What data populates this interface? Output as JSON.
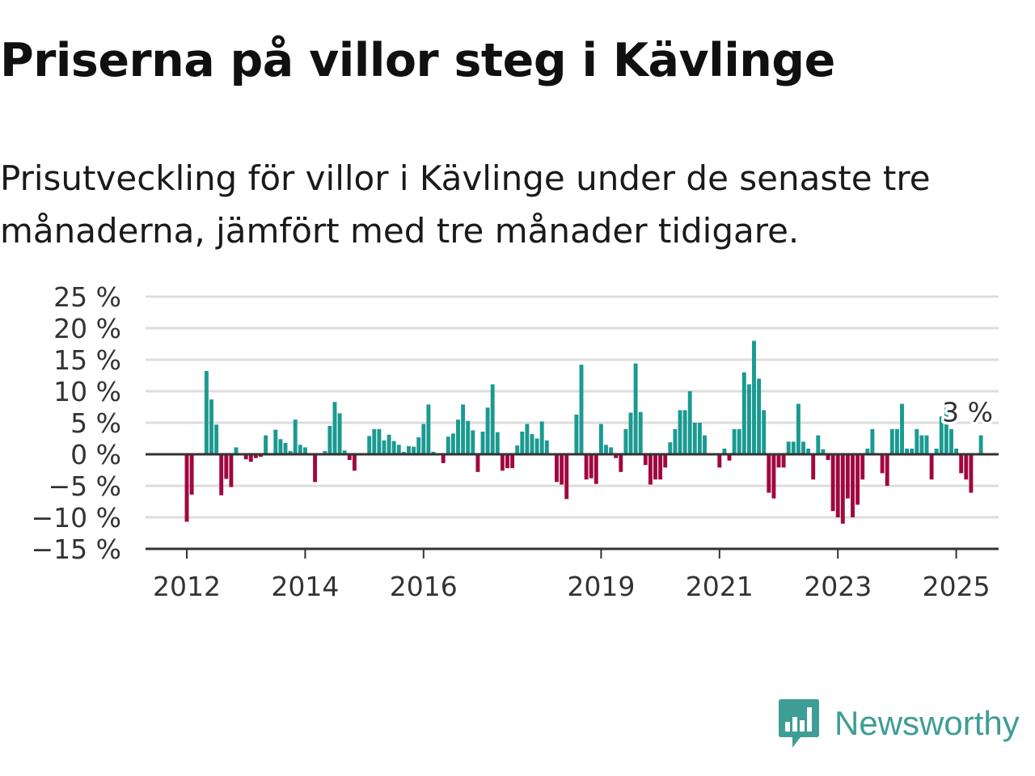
{
  "chart_data": {
    "type": "bar",
    "title": "Priserna på villor steg i Kävlinge",
    "subtitle": "Prisutveckling för villor i Kävlinge under de senaste tre månaderna, jämfört med tre månader tidigare.",
    "unit": "%",
    "x_start": "2012-01",
    "x_ticks": [
      "2012",
      "2014",
      "2016",
      "2019",
      "2021",
      "2023",
      "2025"
    ],
    "y_ticks": [
      "25 %",
      "20 %",
      "15 %",
      "10 %",
      "5 %",
      "0 %",
      "−5 %",
      "−10 %",
      "−15 %"
    ],
    "ylim": [
      -15,
      25
    ],
    "grid": true,
    "colors": {
      "positive": "#1a9a91",
      "negative": "#a0073f",
      "grid": "#dddddd",
      "axis": "#333333"
    },
    "annotation": {
      "text": "3 %",
      "at": "2025-01"
    },
    "values": [
      -10.7,
      -6.4,
      0,
      0,
      13.2,
      8.7,
      4.7,
      -6.5,
      -3.9,
      -5.2,
      1.1,
      0,
      -0.8,
      -1.2,
      -0.6,
      -0.4,
      3.0,
      0,
      3.9,
      2.4,
      1.8,
      0.5,
      5.5,
      1.5,
      1.1,
      0,
      -4.4,
      0,
      0.5,
      4.5,
      8.3,
      6.5,
      0.6,
      -0.9,
      -2.6,
      0,
      0,
      2.9,
      4.0,
      4.0,
      2.2,
      3.1,
      2.1,
      1.5,
      0.4,
      1.3,
      1.2,
      2.7,
      4.8,
      7.9,
      0.4,
      0,
      -1.4,
      2.8,
      3.3,
      5.5,
      7.9,
      5.3,
      3.8,
      -2.8,
      3.6,
      7.4,
      11.1,
      3.5,
      -2.6,
      -2.2,
      -2.2,
      1.4,
      3.6,
      4.8,
      3.2,
      2.5,
      5.2,
      2.2,
      0,
      -4.4,
      -4.8,
      -7.1,
      0,
      6.3,
      14.2,
      -4.0,
      -3.8,
      -4.7,
      4.8,
      1.5,
      1.1,
      -0.6,
      -2.8,
      4.0,
      6.6,
      14.4,
      6.7,
      -1.7,
      -4.8,
      -4.0,
      -4.0,
      -2.1,
      1.9,
      4.0,
      7.0,
      7.0,
      10.0,
      5.0,
      5.0,
      3.0,
      0,
      0,
      -2.1,
      0.9,
      -1.0,
      4.0,
      4.0,
      13.0,
      11.1,
      18.0,
      12.0,
      7.0,
      -6.1,
      -7.0,
      -2.1,
      -2.1,
      2.0,
      2.0,
      8.0,
      2.0,
      0.9,
      -4.0,
      3.0,
      0.8,
      -0.9,
      -9.0,
      -10.0,
      -11.0,
      -7.0,
      -10.0,
      -8.0,
      -4.0,
      0.9,
      4.0,
      0,
      -3.0,
      -5.0,
      4.0,
      4.0,
      8.0,
      0.9,
      0.9,
      4.0,
      3.0,
      3.0,
      -4.0,
      0.9,
      6.0,
      8.0,
      4.0,
      0.9,
      -3.0,
      -4.0,
      -6.1,
      0,
      3.0
    ]
  },
  "brand": {
    "name": "Newsworthy",
    "icon": "newsworthy-logo-icon",
    "color": "#3e9d94"
  }
}
